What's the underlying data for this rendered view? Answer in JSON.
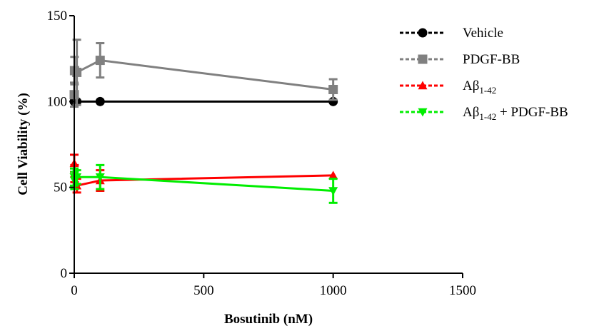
{
  "chart_data": {
    "type": "line",
    "xlabel": "Bosutinib (nM)",
    "ylabel": "Cell Viability (%)",
    "xlim": [
      0,
      1500
    ],
    "ylim": [
      0,
      150
    ],
    "x_ticks": [
      "0",
      "500",
      "1000",
      "1500"
    ],
    "y_ticks": [
      "0",
      "50",
      "100",
      "150"
    ],
    "grid": false,
    "legend_position": "top-right",
    "series": [
      {
        "name": "Vehicle",
        "legend_label": {
          "base": "Vehicle",
          "sub": "",
          "suffix": ""
        },
        "color": "#000000",
        "marker": "circle",
        "x": [
          0,
          1,
          10,
          100,
          1000
        ],
        "y": [
          100,
          100,
          100,
          100,
          100
        ],
        "err": [
          0,
          0,
          0,
          0,
          0
        ]
      },
      {
        "name": "PDGF-BB",
        "legend_label": {
          "base": "PDGF-BB",
          "sub": "",
          "suffix": ""
        },
        "color": "#808080",
        "marker": "square",
        "x": [
          0,
          1,
          10,
          100,
          1000
        ],
        "y": [
          104,
          118,
          117,
          124,
          107
        ],
        "err": [
          7,
          8,
          19,
          10,
          6
        ]
      },
      {
        "name": "Aβ1-42",
        "legend_label": {
          "base": "Aβ",
          "sub": "1-42",
          "suffix": ""
        },
        "color": "#ff0000",
        "marker": "triangle-up",
        "x": [
          0,
          1,
          10,
          100,
          1000
        ],
        "y": [
          64,
          58,
          51,
          54,
          57
        ],
        "err": [
          5,
          5,
          4,
          6,
          0
        ]
      },
      {
        "name": "Aβ1-42 + PDGF-BB",
        "legend_label": {
          "base": "Aβ",
          "sub": "1-42",
          "suffix": " + PDGF-BB"
        },
        "color": "#00ee00",
        "marker": "triangle-down",
        "x": [
          0,
          1,
          10,
          100,
          1000
        ],
        "y": [
          56,
          54,
          56,
          56,
          48
        ],
        "err": [
          5,
          5,
          4,
          7,
          7
        ]
      }
    ]
  }
}
